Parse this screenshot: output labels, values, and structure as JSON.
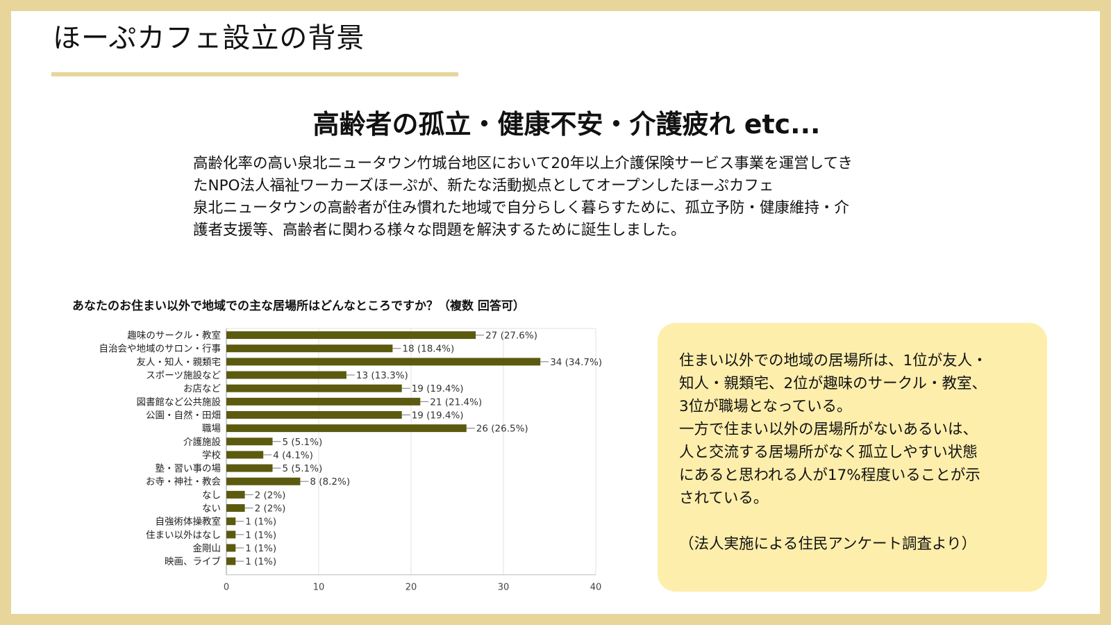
{
  "slide": {
    "title": "ほーぷカフェ設立の背景",
    "headline": "高齢者の孤立・健康不安・介護疲れ etc...",
    "intro_lines": [
      "高齢化率の高い泉北ニュータウン竹城台地区において20年以上介護保険サービス事業を運営してき",
      "たNPO法人福祉ワーカーズほーぷが、新たな活動拠点としてオープンしたほーぷカフェ",
      "泉北ニュータウンの高齢者が住み慣れた地域で自分らしく暮らすために、孤立予防・健康維持・介",
      "護者支援等、高齢者に関わる様々な問題を解決するために誕生しました。"
    ],
    "callout_lines": [
      "住まい以外での地域の居場所は、1位が友人・",
      "知人・親類宅、2位が趣味のサークル・教室、",
      "3位が職場となっている。",
      "一方で住まい以外の居場所がないあるいは、",
      "人と交流する居場所がなく孤立しやすい状態",
      "にあると思われる人が17%程度いることが示",
      "されている。"
    ],
    "callout_source": "（法人実施による住民アンケート調査より）",
    "colors": {
      "frame": "#e8d59a",
      "callout_bg": "#fdeeac",
      "bar": "#5b5a0f"
    }
  },
  "chart_data": {
    "type": "bar",
    "orientation": "horizontal",
    "title": "あなたのお住まい以外で地域での主な居場所はどんなところですか？（複数 回答可）",
    "categories": [
      "趣味のサークル・教室",
      "自治会や地域のサロン・行事",
      "友人・知人・親類宅",
      "スポーツ施設など",
      "お店など",
      "図書館など公共施設",
      "公園・自然・田畑",
      "職場",
      "介護施設",
      "学校",
      "塾・習い事の場",
      "お寺・神社・教会",
      "なし",
      "ない",
      "自強術体操教室",
      "住まい以外はなし",
      "金剛山",
      "映画、ライブ"
    ],
    "values": [
      27,
      18,
      34,
      13,
      19,
      21,
      19,
      26,
      5,
      4,
      5,
      8,
      2,
      2,
      1,
      1,
      1,
      1
    ],
    "value_labels": [
      "27 (27.6%)",
      "18 (18.4%)",
      "34 (34.7%)",
      "13 (13.3%)",
      "19 (19.4%)",
      "21 (21.4%)",
      "19 (19.4%)",
      "26 (26.5%)",
      "5 (5.1%)",
      "4 (4.1%)",
      "5 (5.1%)",
      "8 (8.2%)",
      "2 (2%)",
      "2 (2%)",
      "1 (1%)",
      "1 (1%)",
      "1 (1%)",
      "1 (1%)"
    ],
    "xlim": [
      0,
      40
    ],
    "xticks": [
      0,
      10,
      20,
      30,
      40
    ],
    "grid": true,
    "legend": "none"
  }
}
